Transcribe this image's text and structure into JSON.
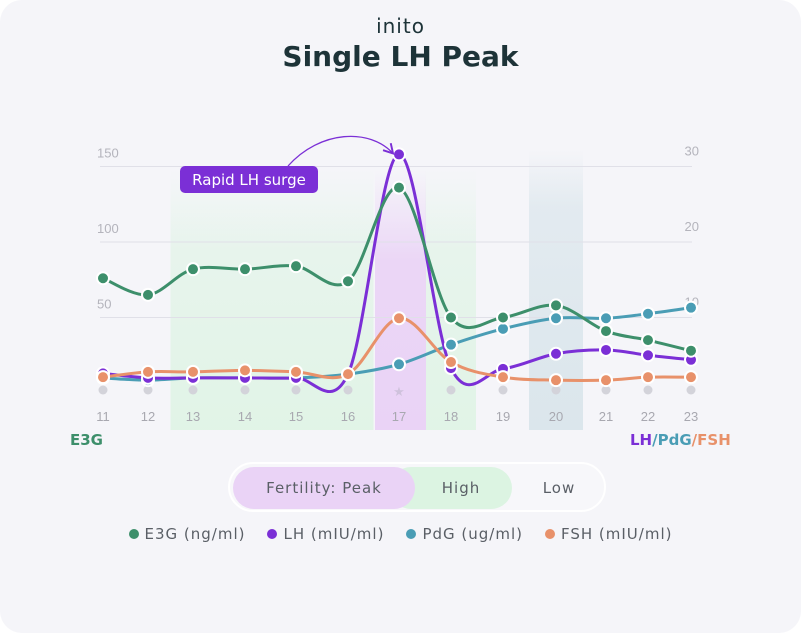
{
  "brand": "inito",
  "colors": {
    "e3g": "#3d8f6b",
    "lh": "#7b2fd6",
    "pdg": "#4a9db5",
    "fsh": "#e8916a",
    "peak": "#ead3f6",
    "high": "#dcf4e2",
    "low": "#dbe6ec"
  },
  "chart_data": {
    "type": "line",
    "title": "Single LH Peak",
    "x": [
      11,
      12,
      13,
      14,
      15,
      16,
      17,
      18,
      19,
      20,
      21,
      22,
      23
    ],
    "xticks": [
      "11",
      "12",
      "13",
      "14",
      "15",
      "16",
      "17",
      "18",
      "19",
      "20",
      "21",
      "22",
      "23"
    ],
    "y_left": {
      "label": "E3G",
      "range": [
        0,
        160
      ],
      "ticks": [
        "50",
        "100",
        "150"
      ]
    },
    "y_right": {
      "label_parts": [
        "LH",
        "/",
        "PdG",
        "/",
        "FSH"
      ],
      "range": [
        0,
        32
      ],
      "ticks": [
        "10",
        "20",
        "30"
      ]
    },
    "grid": true,
    "series": [
      {
        "key": "e3g",
        "name": "E3G (ng/ml)",
        "axis": "left",
        "values": [
          76,
          65,
          82,
          82,
          84,
          74,
          136,
          50,
          50,
          58,
          41,
          35,
          28
        ]
      },
      {
        "key": "lh",
        "name": "LH (mIU/ml)",
        "axis": "right",
        "values": [
          2.6,
          2,
          2,
          2,
          2,
          2.5,
          31.6,
          3.3,
          3.2,
          5.2,
          5.7,
          5.0,
          4.4
        ]
      },
      {
        "key": "pdg",
        "name": "PdG (ug/ml)",
        "axis": "right",
        "values": [
          2,
          1.7,
          2,
          2,
          2,
          2.5,
          3.8,
          6.4,
          8.5,
          9.9,
          9.9,
          10.5,
          11.3
        ]
      },
      {
        "key": "fsh",
        "name": "FSH (mIU/ml)",
        "axis": "right",
        "values": [
          2.1,
          2.8,
          2.8,
          3.0,
          2.8,
          2.5,
          9.9,
          4.1,
          2.1,
          1.7,
          1.7,
          2.1,
          2.1
        ]
      }
    ],
    "fertility": {
      "high": [
        13,
        14,
        15,
        16,
        18
      ],
      "peak": [
        17
      ],
      "low_highlight": [
        20
      ]
    },
    "peak_marker_day": 17,
    "annotation": {
      "text": "Rapid LH surge",
      "target_day": 17,
      "series": "lh"
    }
  },
  "fertility_toggle": {
    "peak": "Fertility: Peak",
    "high": "High",
    "low": "Low"
  }
}
